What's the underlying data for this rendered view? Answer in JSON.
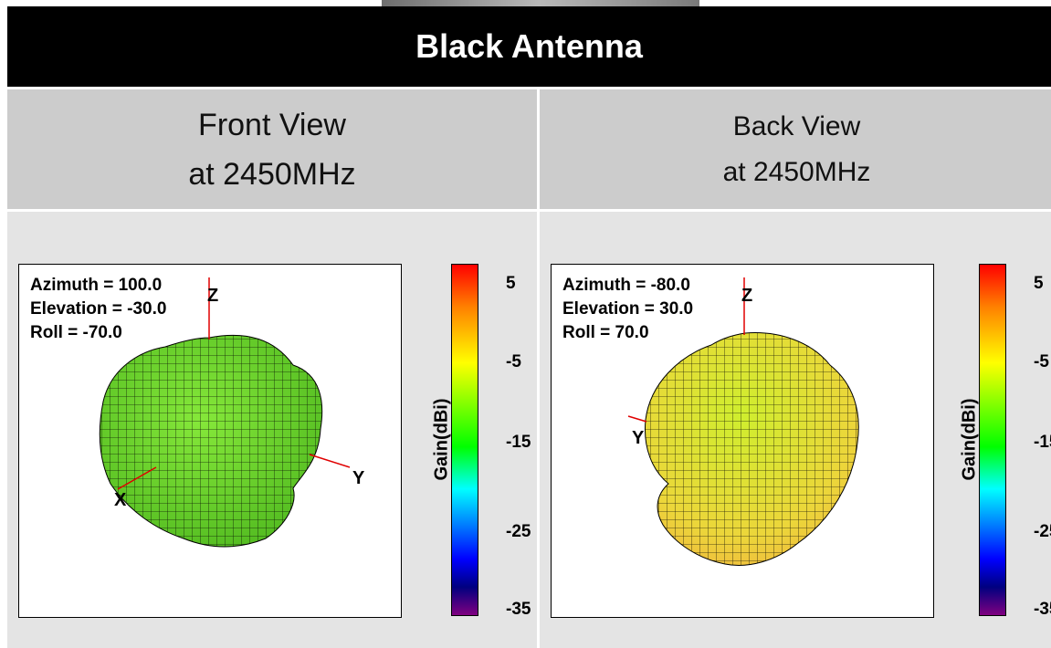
{
  "title": "Black Antenna",
  "views": [
    {
      "header": [
        "Front View",
        "at 2450MHz"
      ],
      "azimuth": "Azimuth = 100.0",
      "elevation": "Elevation = -30.0",
      "roll": "Roll = -70.0",
      "axes": {
        "z": "Z",
        "y": "Y",
        "x": "X"
      },
      "surface_color": "#6ad22c"
    },
    {
      "header": [
        "Back View",
        "at 2450MHz"
      ],
      "azimuth": "Azimuth = -80.0",
      "elevation": "Elevation = 30.0",
      "roll": "Roll = 70.0",
      "axes": {
        "z": "Z",
        "y": "Y"
      },
      "surface_color": "#d6e834"
    }
  ],
  "colorbar": {
    "label": "Gain(dBi)",
    "ticks": [
      "5",
      "-5",
      "-15",
      "-25",
      "-35"
    ]
  }
}
